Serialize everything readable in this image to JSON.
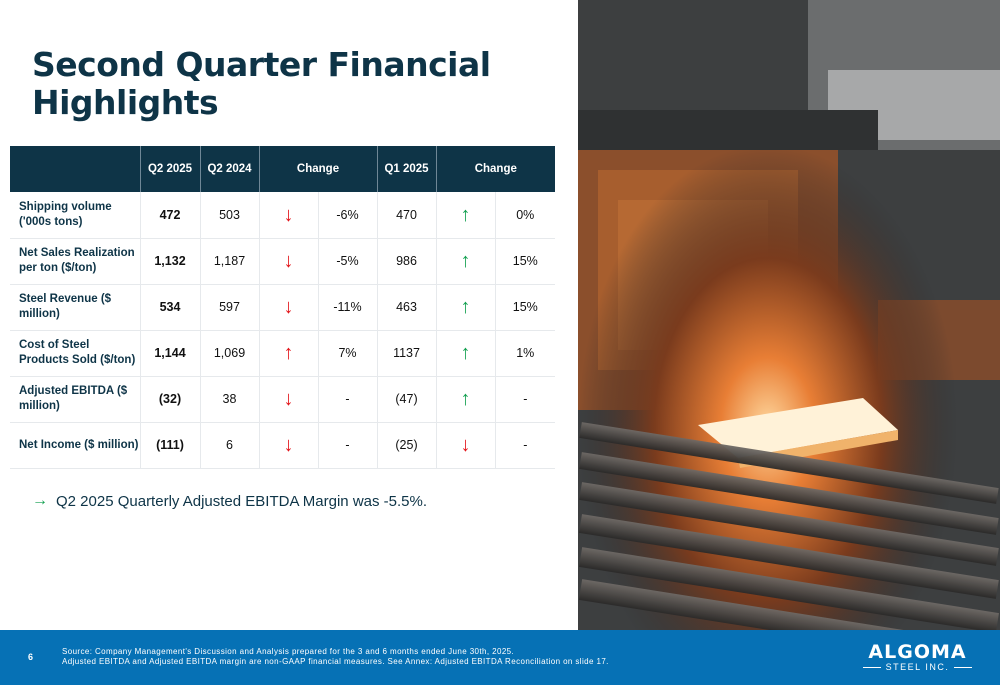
{
  "title": "Second Quarter Financial Highlights",
  "table": {
    "headers": [
      "",
      "Q2 2025",
      "Q2 2024",
      "Change",
      "Q1 2025",
      "Change"
    ],
    "rows": [
      {
        "metric": "Shipping volume ('000s tons)",
        "q2_2025": "472",
        "q2_2024": "503",
        "change_vs_prior_year_direction": "down",
        "change_vs_prior_year": "-6%",
        "q1_2025": "470",
        "change_vs_q1_direction": "up",
        "change_vs_q1": "0%"
      },
      {
        "metric": "Net Sales Realization per ton ($/ton)",
        "q2_2025": "1,132",
        "q2_2024": "1,187",
        "change_vs_prior_year_direction": "down",
        "change_vs_prior_year": "-5%",
        "q1_2025": "986",
        "change_vs_q1_direction": "up",
        "change_vs_q1": "15%"
      },
      {
        "metric": "Steel Revenue ($ million)",
        "q2_2025": "534",
        "q2_2024": "597",
        "change_vs_prior_year_direction": "down",
        "change_vs_prior_year": "-11%",
        "q1_2025": "463",
        "change_vs_q1_direction": "up",
        "change_vs_q1": "15%"
      },
      {
        "metric": "Cost of Steel Products Sold ($/ton)",
        "q2_2025": "1,144",
        "q2_2024": "1,069",
        "change_vs_prior_year_direction": "up",
        "change_vs_prior_year": "7%",
        "q1_2025": "1137",
        "change_vs_q1_direction": "up",
        "change_vs_q1": "1%"
      },
      {
        "metric": "Adjusted EBITDA ($ million)",
        "q2_2025": "(32)",
        "q2_2024": "38",
        "change_vs_prior_year_direction": "down",
        "change_vs_prior_year": "-",
        "q1_2025": "(47)",
        "change_vs_q1_direction": "up",
        "change_vs_q1": "-"
      },
      {
        "metric": "Net Income ($ million)",
        "q2_2025": "(111)",
        "q2_2024": "6",
        "change_vs_prior_year_direction": "down",
        "change_vs_prior_year": "-",
        "q1_2025": "(25)",
        "change_vs_q1_direction": "down",
        "change_vs_q1": "-"
      }
    ]
  },
  "bullet": "Q2 2025 Quarterly Adjusted EBITDA Margin was -5.5%.",
  "footer": {
    "page_number": "6",
    "source_line1": "Source: Company Management's Discussion and Analysis prepared for the 3 and 6 months ended June 30th, 2025.",
    "source_line2": "Adjusted EBITDA and Adjusted EBITDA margin are non-GAAP financial measures. See Annex: Adjusted EBITDA Reconciliation on slide 17.",
    "logo_main": "ALGOMA",
    "logo_sub": "STEEL INC."
  },
  "colors": {
    "navy": "#0e3447",
    "footer_blue": "#0671b5",
    "red": "#e3151a",
    "green": "#13a050"
  },
  "icons": {
    "up": "arrow-up-icon",
    "down": "arrow-down-icon",
    "bullet": "arrow-right-icon"
  }
}
